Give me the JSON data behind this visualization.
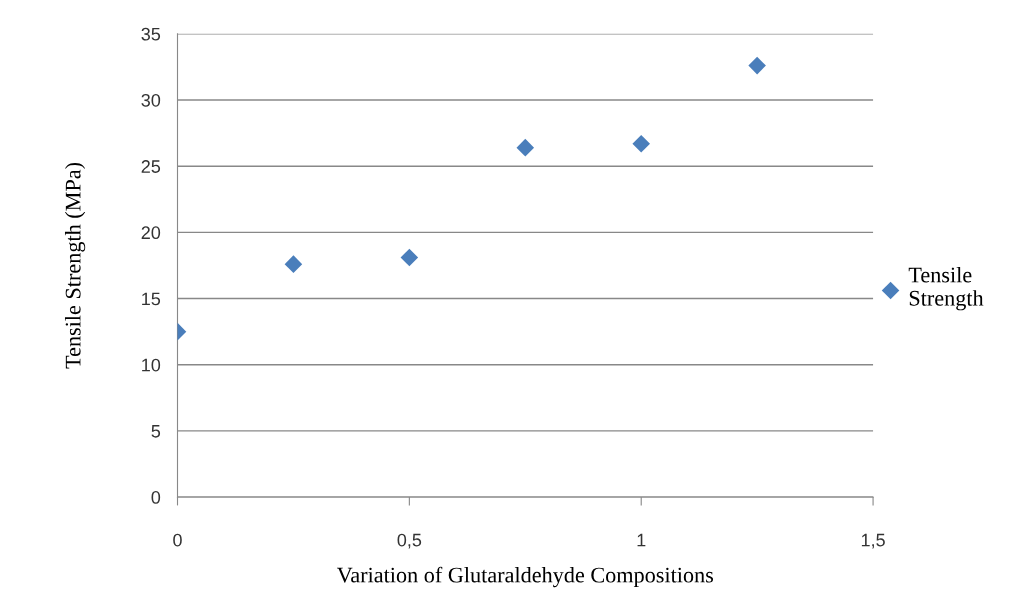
{
  "chart_data": {
    "type": "scatter",
    "xlabel": "Variation of Glutaraldehyde Compositions",
    "ylabel": "Tensile Strength (MPa)",
    "x": [
      0,
      0.25,
      0.5,
      0.75,
      1,
      1.25
    ],
    "series": [
      {
        "name": "Tensile Strength",
        "color": "#4a7ebb",
        "values": [
          12.5,
          17.6,
          18.1,
          26.4,
          26.7,
          32.6
        ]
      }
    ],
    "xlim": [
      0,
      1.5
    ],
    "xticks": [
      0,
      {
        "value": 0.5,
        "label": "0,5"
      },
      1,
      {
        "value": 1.5,
        "label": "1,5"
      }
    ],
    "ylim": [
      0,
      35
    ],
    "yticks": [
      0,
      5,
      10,
      15,
      20,
      25,
      30,
      35
    ],
    "grid": "y",
    "legend": "right",
    "marker": "diamond"
  }
}
